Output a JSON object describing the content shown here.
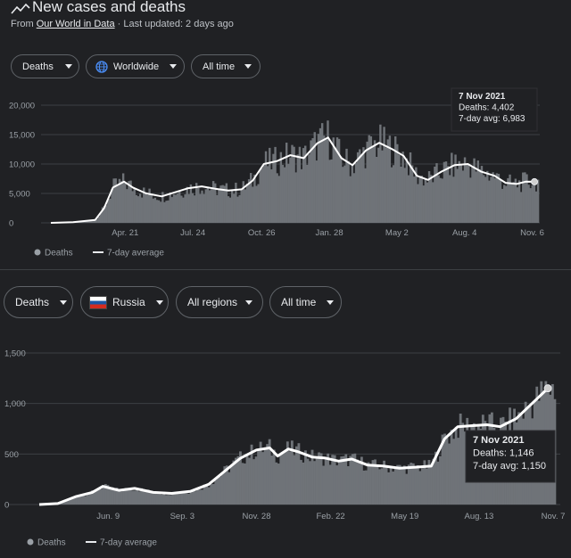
{
  "header": {
    "title": "New cases and deaths",
    "source_prefix": "From ",
    "source_link": "Our World in Data",
    "updated": " · Last updated: 2 days ago"
  },
  "chart1": {
    "filters": {
      "metric": "Deaths",
      "region": "Worldwide",
      "range": "All time"
    },
    "legend": {
      "bars": "Deaths",
      "line": "7-day average"
    },
    "tooltip": {
      "date": "7 Nov 2021",
      "deaths": "Deaths: 4,402",
      "avg": "7-day avg: 6,983"
    }
  },
  "chart2": {
    "filters": {
      "metric": "Deaths",
      "country": "Russia",
      "regions": "All regions",
      "range": "All time"
    },
    "legend": {
      "bars": "Deaths",
      "line": "7-day average"
    },
    "tooltip": {
      "date": "7 Nov 2021",
      "deaths": "Deaths: 1,146",
      "avg": "7-day avg: 1,150"
    }
  },
  "colors": {
    "background": "#202124",
    "area": "#6f7378",
    "line": "#ffffff",
    "grid": "#3c4043",
    "flag_white": "#ffffff",
    "flag_blue": "#1c57a5",
    "flag_red": "#d52b1e",
    "globe": "#4a8df5"
  },
  "chart_data": [
    {
      "type": "area",
      "ylabel": "",
      "xlabel": "",
      "ylim": [
        0,
        20000
      ],
      "yticks": [
        0,
        5000,
        10000,
        15000,
        20000
      ],
      "ytick_labels": [
        "0",
        "5,000",
        "10,000",
        "15,000",
        "20,000"
      ],
      "xticks": [
        "Apr. 21",
        "Jul. 24",
        "Oct. 26",
        "Jan. 28",
        "May 2",
        "Aug. 4",
        "Nov. 6"
      ],
      "xtick_pos": [
        3.35,
        6.4,
        9.5,
        12.55,
        15.6,
        18.65,
        21.7
      ],
      "xlim": [
        0,
        22
      ],
      "grid": true,
      "legend_position": "bottom-left",
      "series": [
        {
          "name": "7-day average",
          "x": [
            0,
            1,
            2,
            2.4,
            2.8,
            3.3,
            3.7,
            4.3,
            5,
            5.6,
            6.2,
            6.8,
            7.4,
            8,
            8.6,
            9.1,
            9.6,
            10.2,
            10.8,
            11.4,
            12,
            12.5,
            13.1,
            13.6,
            14.2,
            14.8,
            15.4,
            15.9,
            16.5,
            17,
            17.6,
            18.2,
            18.8,
            19.4,
            20,
            20.5,
            21,
            21.4,
            21.8
          ],
          "values": [
            0,
            100,
            500,
            2500,
            6000,
            7000,
            6000,
            5000,
            4500,
            5200,
            5900,
            6200,
            5800,
            5500,
            5700,
            7200,
            10000,
            10500,
            11500,
            11000,
            13500,
            14500,
            11000,
            9800,
            12300,
            13600,
            12500,
            11400,
            8000,
            7300,
            8700,
            9800,
            10000,
            8700,
            8000,
            6800,
            6600,
            7000,
            6983
          ]
        }
      ],
      "tooltip": {
        "date": "7 Nov 2021",
        "deaths": 4402,
        "avg": 6983
      }
    },
    {
      "type": "area",
      "ylabel": "",
      "xlabel": "",
      "ylim": [
        0,
        1500
      ],
      "yticks": [
        0,
        500,
        1000,
        1500
      ],
      "ytick_labels": [
        "0",
        "500",
        "1,000",
        "1,500"
      ],
      "xticks": [
        "Jun. 9",
        "Sep. 3",
        "Nov. 28",
        "Feb. 22",
        "May 19",
        "Aug. 13",
        "Nov. 7"
      ],
      "xtick_pos": [
        2.6,
        5.4,
        8.2,
        11,
        13.8,
        16.6,
        19.4
      ],
      "xlim": [
        0,
        19.5
      ],
      "grid": true,
      "legend_position": "bottom-left",
      "series": [
        {
          "name": "7-day average",
          "x": [
            0,
            0.7,
            1.4,
            2,
            2.4,
            3,
            3.6,
            4.3,
            5,
            5.7,
            6.4,
            7,
            7.6,
            8.2,
            8.7,
            9,
            9.4,
            9.8,
            10.3,
            10.8,
            11.3,
            11.8,
            12.4,
            13,
            13.6,
            14.2,
            14.8,
            15.3,
            15.8,
            16.3,
            16.9,
            17.4,
            18,
            18.6,
            19.2
          ],
          "values": [
            0,
            10,
            80,
            120,
            180,
            140,
            160,
            120,
            110,
            130,
            200,
            330,
            460,
            540,
            560,
            480,
            550,
            520,
            470,
            460,
            430,
            450,
            390,
            380,
            360,
            370,
            380,
            650,
            770,
            780,
            790,
            770,
            850,
            1000,
            1150
          ]
        }
      ],
      "tooltip": {
        "date": "7 Nov 2021",
        "deaths": 1146,
        "avg": 1150
      }
    }
  ]
}
